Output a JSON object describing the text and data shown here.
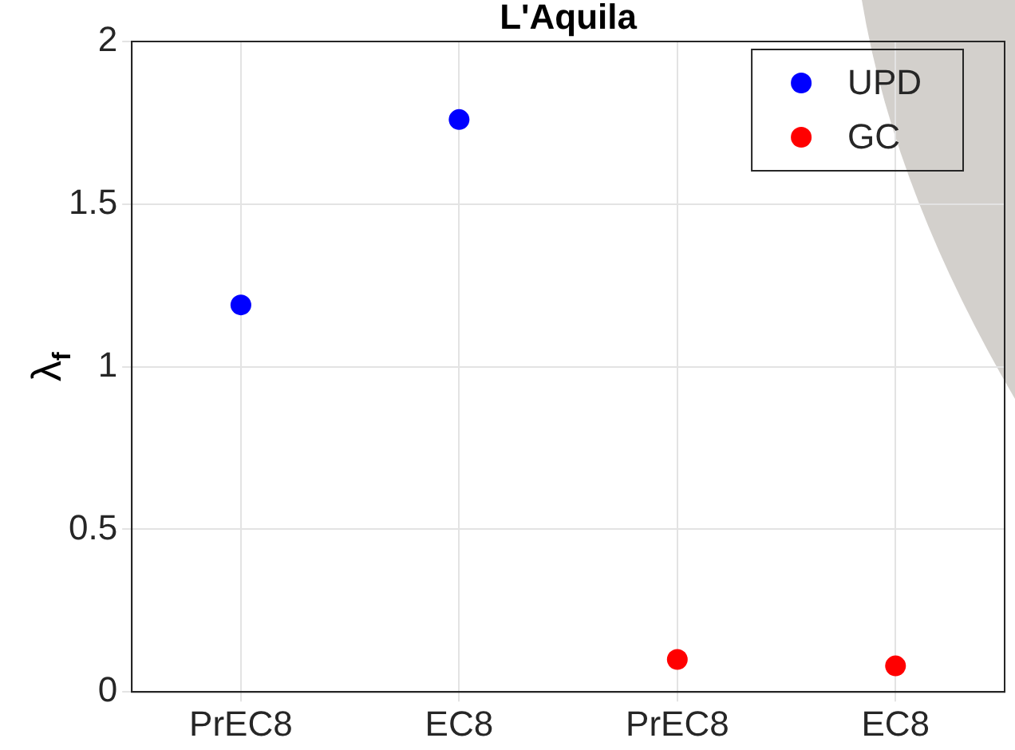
{
  "chart_data": {
    "type": "scatter",
    "title": "L'Aquila",
    "ylabel": "λ$_{f}$",
    "categories": [
      "PrEC8",
      "EC8",
      "PrEC8",
      "EC8"
    ],
    "series": [
      {
        "name": "UPD",
        "color": "#0000ff",
        "values": [
          1.19,
          1.76,
          null,
          null
        ]
      },
      {
        "name": "GC",
        "color": "#ff0000",
        "values": [
          null,
          null,
          0.1,
          0.08
        ]
      }
    ],
    "ylim": [
      0,
      2
    ],
    "yticks": [
      0,
      0.5,
      1,
      1.5,
      2
    ],
    "grid": true,
    "legend": "top right",
    "marker": "circle"
  }
}
